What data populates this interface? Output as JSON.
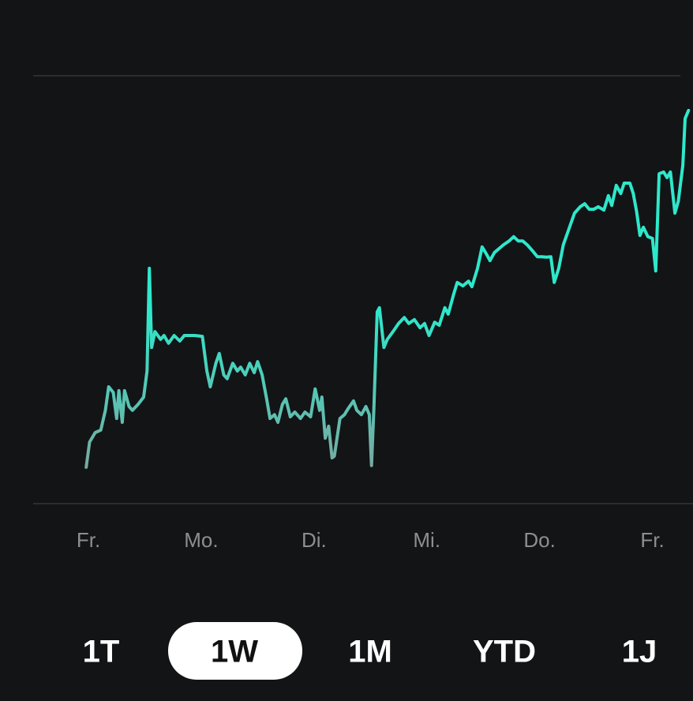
{
  "chart_data": {
    "type": "line",
    "xlim": [
      -0.49,
      5.36
    ],
    "xticks": [
      {
        "value": 0,
        "label": "Fr."
      },
      {
        "value": 1,
        "label": "Mo."
      },
      {
        "value": 2,
        "label": "Di."
      },
      {
        "value": 3,
        "label": "Mi."
      },
      {
        "value": 4,
        "label": "Do."
      },
      {
        "value": 5,
        "label": "Fr."
      }
    ],
    "ylim": [
      0,
      100
    ],
    "grid": true,
    "x": [
      -0.02,
      0.01,
      0.06,
      0.11,
      0.15,
      0.18,
      0.22,
      0.25,
      0.27,
      0.3,
      0.32,
      0.36,
      0.39,
      0.44,
      0.49,
      0.52,
      0.54,
      0.56,
      0.59,
      0.64,
      0.67,
      0.71,
      0.76,
      0.81,
      0.85,
      0.94,
      1.01,
      1.05,
      1.08,
      1.13,
      1.16,
      1.2,
      1.23,
      1.28,
      1.32,
      1.35,
      1.39,
      1.43,
      1.47,
      1.5,
      1.54,
      1.58,
      1.61,
      1.65,
      1.68,
      1.72,
      1.75,
      1.79,
      1.83,
      1.88,
      1.92,
      1.97,
      2.01,
      2.05,
      2.07,
      2.1,
      2.13,
      2.16,
      2.18,
      2.23,
      2.27,
      2.3,
      2.35,
      2.38,
      2.42,
      2.46,
      2.49,
      2.51,
      2.53,
      2.56,
      2.58,
      2.62,
      2.65,
      2.7,
      2.75,
      2.8,
      2.84,
      2.89,
      2.94,
      2.98,
      3.02,
      3.07,
      3.11,
      3.16,
      3.19,
      3.24,
      3.27,
      3.32,
      3.37,
      3.4,
      3.45,
      3.49,
      3.52,
      3.56,
      3.6,
      3.64,
      3.68,
      3.73,
      3.77,
      3.81,
      3.85,
      3.89,
      3.94,
      3.98,
      4.02,
      4.06,
      4.1,
      4.13,
      4.17,
      4.21,
      4.26,
      4.31,
      4.36,
      4.4,
      4.44,
      4.48,
      4.52,
      4.57,
      4.61,
      4.64,
      4.68,
      4.72,
      4.75,
      4.8,
      4.83,
      4.86,
      4.89,
      4.92,
      4.96,
      5.0,
      5.03,
      5.06,
      5.1,
      5.13,
      5.16,
      5.2,
      5.23,
      5.27,
      5.29,
      5.32
    ],
    "series": [
      {
        "color": "#2ee8cb",
        "values": [
          8.5,
          14.4,
          16.6,
          17.2,
          21.8,
          27.3,
          26.0,
          19.9,
          26.4,
          19.0,
          26.4,
          22.7,
          21.8,
          23.2,
          24.9,
          31.0,
          55.0,
          36.5,
          40.2,
          38.4,
          39.3,
          37.5,
          39.3,
          38.0,
          39.3,
          39.3,
          39.1,
          31.0,
          27.3,
          32.8,
          35.1,
          30.1,
          29.2,
          32.8,
          31.0,
          31.9,
          30.1,
          32.8,
          30.6,
          33.2,
          30.1,
          24.5,
          19.9,
          20.8,
          19.0,
          23.2,
          24.5,
          20.3,
          21.4,
          19.9,
          21.4,
          20.3,
          26.8,
          21.8,
          24.9,
          15.3,
          18.1,
          10.7,
          11.1,
          19.9,
          20.8,
          22.1,
          24.0,
          21.8,
          20.8,
          22.7,
          20.8,
          8.9,
          21.8,
          44.8,
          45.8,
          36.5,
          38.4,
          40.2,
          42.1,
          43.5,
          42.1,
          43.0,
          41.1,
          42.1,
          39.3,
          42.4,
          41.7,
          45.8,
          44.3,
          49.1,
          51.7,
          50.9,
          52.0,
          50.7,
          55.0,
          60.0,
          58.7,
          56.8,
          58.7,
          59.6,
          60.5,
          61.4,
          62.4,
          61.4,
          61.4,
          60.5,
          59.0,
          57.7,
          57.7,
          57.6,
          57.7,
          51.7,
          55.0,
          60.5,
          64.2,
          67.9,
          69.4,
          70.1,
          68.8,
          68.8,
          69.4,
          68.6,
          72.0,
          69.7,
          74.4,
          72.5,
          74.9,
          74.9,
          72.5,
          68.3,
          62.7,
          64.6,
          62.4,
          62.0,
          54.4,
          77.1,
          77.5,
          76.2,
          77.5,
          67.9,
          70.7,
          79.0,
          90.0,
          91.9
        ]
      }
    ]
  },
  "range_selector": {
    "options": [
      "1T",
      "1W",
      "1M",
      "YTD",
      "1J"
    ],
    "selected": 1
  }
}
